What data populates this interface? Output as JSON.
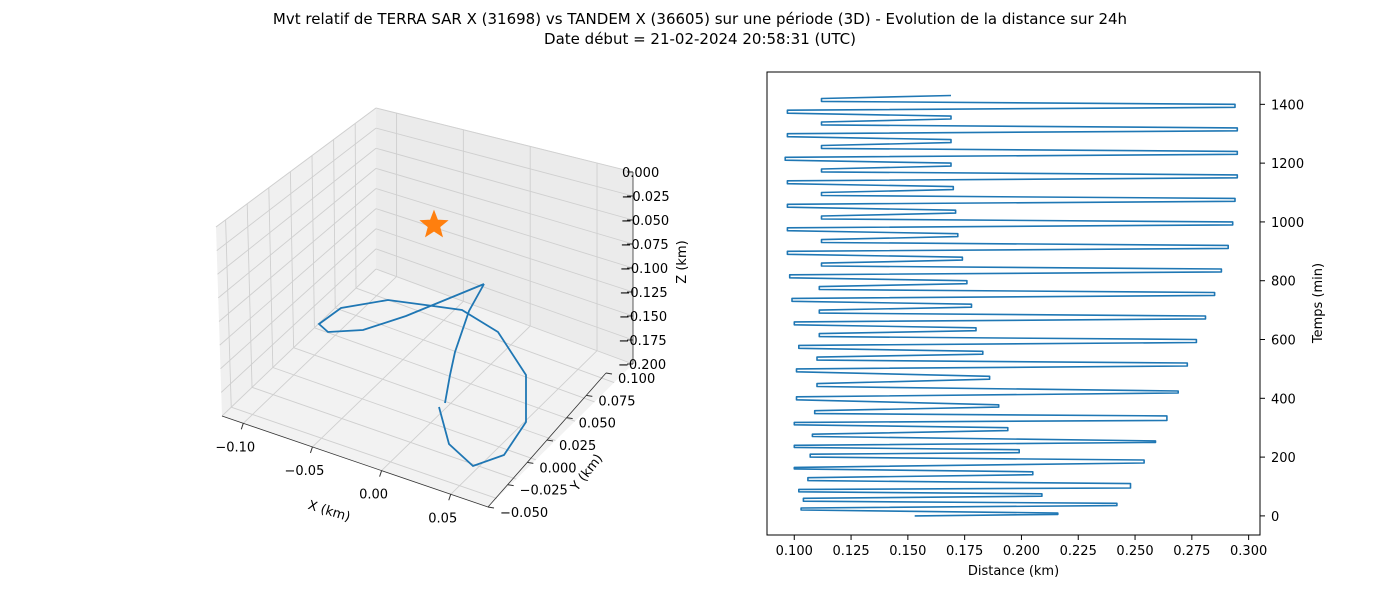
{
  "title_line1": "Mvt relatif de TERRA SAR X (31698) vs TANDEM X (36605) sur une période (3D) - Evolution de la distance sur 24h",
  "title_line2": "Date début = 21-02-2024 20:58:31 (UTC)",
  "chart_data": [
    {
      "type": "line3d",
      "xlabel": "X (km)",
      "ylabel": "Y (km)",
      "zlabel": "Z (km)",
      "x_ticks": [
        "−0.10",
        "−0.05",
        "0.00",
        "0.05"
      ],
      "y_ticks": [
        "−0.050",
        "−0.025",
        "0.000",
        "0.025",
        "0.050",
        "0.075",
        "0.100"
      ],
      "z_ticks": [
        "0.000",
        "−0.025",
        "−0.050",
        "−0.075",
        "−0.100",
        "−0.125",
        "−0.150",
        "−0.175",
        "−0.200"
      ],
      "xlim": [
        -0.13,
        0.075
      ],
      "ylim": [
        -0.06,
        0.115
      ],
      "zlim": [
        -0.2,
        0.0
      ],
      "grid": true,
      "series_color": "#1f77b4",
      "marker_color": "#ff7f0e",
      "marker": {
        "shape": "star",
        "x": 0.0,
        "y": 0.0,
        "z": -0.05
      }
    },
    {
      "type": "line",
      "xlabel": "Distance (km)",
      "ylabel": "Temps (min)",
      "xlim": [
        0.088,
        0.305
      ],
      "ylim": [
        -65,
        1510
      ],
      "x_ticks": [
        "0.100",
        "0.125",
        "0.150",
        "0.175",
        "0.200",
        "0.225",
        "0.250",
        "0.275",
        "0.300"
      ],
      "y_ticks": [
        "0",
        "200",
        "400",
        "600",
        "800",
        "1000",
        "1200",
        "1400"
      ],
      "y_axis_side": "right",
      "series_color": "#1f77b4",
      "series": {
        "time_min": [
          0,
          5,
          10,
          20,
          27,
          35,
          43,
          50,
          60,
          67,
          75,
          82,
          90,
          95,
          110,
          120,
          130,
          140,
          150,
          160,
          165,
          180,
          190,
          200,
          210,
          215,
          225,
          233,
          240,
          250,
          255,
          270,
          278,
          290,
          300,
          310,
          318,
          325,
          340,
          348,
          358,
          370,
          378,
          395,
          405,
          418,
          425,
          440,
          450,
          465,
          475,
          490,
          500,
          510,
          520,
          530,
          540,
          550,
          560,
          570,
          580,
          590,
          600,
          610,
          620,
          630,
          640,
          650,
          660,
          670,
          680,
          690,
          700,
          710,
          720,
          730,
          740,
          750,
          760,
          770,
          780,
          790,
          800,
          810,
          820,
          830,
          840,
          850,
          860,
          870,
          880,
          890,
          900,
          910,
          920,
          930,
          940,
          950,
          960,
          970,
          980,
          990,
          1000,
          1010,
          1020,
          1030,
          1040,
          1050,
          1060,
          1070,
          1080,
          1090,
          1100,
          1110,
          1120,
          1130,
          1140,
          1150,
          1160,
          1170,
          1180,
          1190,
          1200,
          1210,
          1220,
          1230,
          1240,
          1250,
          1260,
          1270,
          1280,
          1290,
          1300,
          1310,
          1320,
          1330,
          1340,
          1350,
          1360,
          1370,
          1380,
          1390,
          1400,
          1410,
          1420,
          1430
        ],
        "distance_km": [
          0.153,
          0.216,
          0.216,
          0.103,
          0.103,
          0.242,
          0.242,
          0.104,
          0.104,
          0.209,
          0.209,
          0.102,
          0.102,
          0.248,
          0.248,
          0.106,
          0.106,
          0.205,
          0.205,
          0.1,
          0.1,
          0.254,
          0.254,
          0.107,
          0.107,
          0.199,
          0.199,
          0.1,
          0.1,
          0.259,
          0.259,
          0.108,
          0.108,
          0.194,
          0.194,
          0.1,
          0.1,
          0.264,
          0.264,
          0.109,
          0.109,
          0.19,
          0.19,
          0.101,
          0.101,
          0.269,
          0.269,
          0.11,
          0.11,
          0.186,
          0.186,
          0.101,
          0.101,
          0.273,
          0.273,
          0.11,
          0.11,
          0.183,
          0.183,
          0.102,
          0.102,
          0.277,
          0.277,
          0.111,
          0.111,
          0.18,
          0.18,
          0.1,
          0.1,
          0.281,
          0.281,
          0.111,
          0.111,
          0.178,
          0.178,
          0.099,
          0.099,
          0.285,
          0.285,
          0.111,
          0.111,
          0.176,
          0.176,
          0.098,
          0.098,
          0.288,
          0.288,
          0.112,
          0.112,
          0.174,
          0.174,
          0.097,
          0.097,
          0.291,
          0.291,
          0.112,
          0.112,
          0.172,
          0.172,
          0.097,
          0.097,
          0.293,
          0.293,
          0.112,
          0.112,
          0.171,
          0.171,
          0.097,
          0.097,
          0.294,
          0.294,
          0.112,
          0.112,
          0.17,
          0.17,
          0.097,
          0.097,
          0.295,
          0.295,
          0.112,
          0.112,
          0.169,
          0.169,
          0.096,
          0.096,
          0.295,
          0.295,
          0.112,
          0.112,
          0.169,
          0.169,
          0.097,
          0.097,
          0.295,
          0.295,
          0.112,
          0.112,
          0.169,
          0.169,
          0.097,
          0.097,
          0.294,
          0.294,
          0.112,
          0.112,
          0.169
        ]
      }
    }
  ]
}
